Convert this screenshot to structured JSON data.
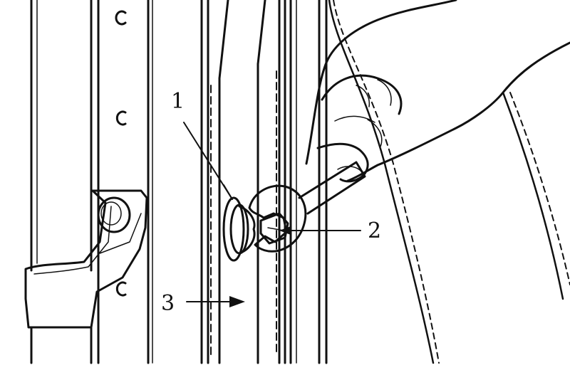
{
  "figure": {
    "description_hidden": false,
    "callouts": [
      {
        "id": "1",
        "text": "1"
      },
      {
        "id": "2",
        "text": "2"
      },
      {
        "id": "3",
        "text": "3"
      }
    ],
    "colors": {
      "ink": "#111111",
      "paper": "#ffffff"
    },
    "icons": {
      "hand": "hand-icon",
      "wrench": "wrench-icon",
      "bolt": "bolt-icon",
      "arrow": "arrow-icon"
    }
  }
}
